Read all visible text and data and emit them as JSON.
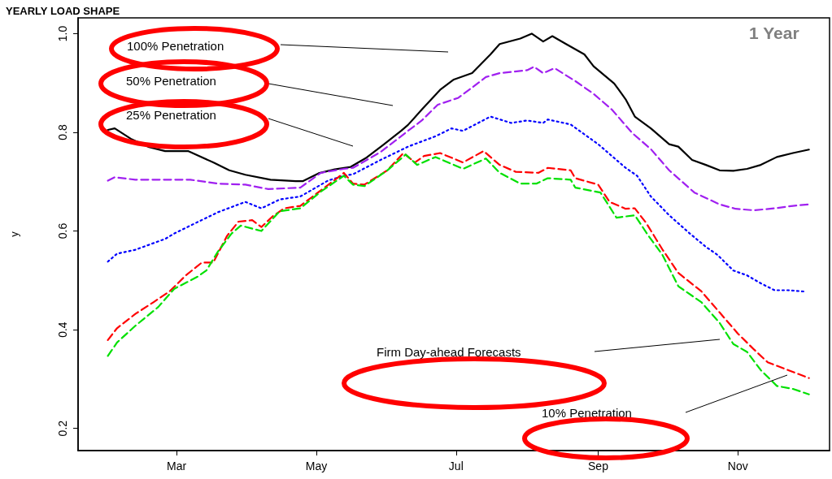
{
  "chart_data": {
    "type": "line",
    "title": "YEARLY LOAD SHAPE",
    "ylabel": "y",
    "xlim": [
      "--01-17",
      "--12-11"
    ],
    "xticks": [
      {
        "value": "--03-01",
        "label": "Mar"
      },
      {
        "value": "--05-01",
        "label": "May"
      },
      {
        "value": "--07-01",
        "label": "Jul"
      },
      {
        "value": "--09-01",
        "label": "Sep"
      },
      {
        "value": "--11-01",
        "label": "Nov"
      }
    ],
    "ylim": [
      0.155,
      1.032
    ],
    "yticks": [
      {
        "value": 0.2,
        "label": "0.2"
      },
      {
        "value": 0.4,
        "label": "0.4"
      },
      {
        "value": 0.6,
        "label": "0.6"
      },
      {
        "value": 0.8,
        "label": "0.8"
      },
      {
        "value": 1,
        "label": "1.0"
      }
    ],
    "series": [
      {
        "color": "#000000",
        "line_style": "solid",
        "x": [
          "--01-30",
          "--02-02",
          "--02-09",
          "--02-17",
          "--02-24",
          "--03-06",
          "--03-17",
          "--03-24",
          "--03-31",
          "--04-11",
          "--04-22",
          "--04-25",
          "--05-02",
          "--05-09",
          "--05-16",
          "--05-23",
          "--05-30",
          "--06-07",
          "--06-10",
          "--06-16",
          "--06-24",
          "--06-30",
          "--07-08",
          "--07-16",
          "--07-20",
          "--07-29",
          "--08-03",
          "--08-08",
          "--08-12",
          "--08-18",
          "--08-26",
          "--08-30",
          "--09-08",
          "--09-13",
          "--09-17",
          "--09-24",
          "--10-02",
          "--10-06",
          "--10-12",
          "--10-18",
          "--10-24",
          "--10-30",
          "--11-05",
          "--11-11",
          "--11-18",
          "--11-25",
          "--12-02"
        ],
        "values": [
          0.805,
          0.808,
          0.787,
          0.77,
          0.762,
          0.762,
          0.739,
          0.723,
          0.714,
          0.704,
          0.701,
          0.701,
          0.717,
          0.725,
          0.73,
          0.749,
          0.774,
          0.803,
          0.815,
          0.846,
          0.886,
          0.907,
          0.92,
          0.958,
          0.979,
          0.99,
          1.0,
          0.984,
          0.995,
          0.979,
          0.958,
          0.934,
          0.899,
          0.867,
          0.832,
          0.808,
          0.776,
          0.771,
          0.744,
          0.734,
          0.723,
          0.722,
          0.726,
          0.734,
          0.75,
          0.758,
          0.765
        ]
      },
      {
        "color": "#a020f0",
        "line_style": "dashed",
        "x": [
          "--01-30",
          "--02-02",
          "--02-11",
          "--03-07",
          "--03-19",
          "--03-31",
          "--04-10",
          "--04-24",
          "--05-03",
          "--05-13",
          "--05-17",
          "--05-29",
          "--06-10",
          "--06-16",
          "--06-23",
          "--07-02",
          "--07-14",
          "--07-20",
          "--08-01",
          "--08-04",
          "--08-08",
          "--08-13",
          "--08-22",
          "--08-30",
          "--09-07",
          "--09-16",
          "--09-24",
          "--10-02",
          "--10-13",
          "--10-24",
          "--10-31",
          "--11-08",
          "--11-17",
          "--11-25",
          "--12-02"
        ],
        "values": [
          0.702,
          0.709,
          0.704,
          0.704,
          0.696,
          0.694,
          0.685,
          0.688,
          0.718,
          0.726,
          0.728,
          0.76,
          0.803,
          0.824,
          0.856,
          0.87,
          0.912,
          0.92,
          0.926,
          0.933,
          0.92,
          0.93,
          0.904,
          0.878,
          0.846,
          0.798,
          0.766,
          0.723,
          0.678,
          0.654,
          0.645,
          0.642,
          0.646,
          0.651,
          0.654
        ]
      },
      {
        "color": "#0000ff",
        "line_style": "dotted",
        "x": [
          "--01-30",
          "--02-03",
          "--02-11",
          "--02-24",
          "--02-28",
          "--03-07",
          "--03-19",
          "--03-31",
          "--04-07",
          "--04-15",
          "--04-24",
          "--05-06",
          "--05-13",
          "--05-17",
          "--05-29",
          "--06-10",
          "--06-22",
          "--06-29",
          "--07-04",
          "--07-16",
          "--07-25",
          "--08-01",
          "--08-08",
          "--08-10",
          "--08-20",
          "--09-01",
          "--09-13",
          "--09-18",
          "--09-24",
          "--10-02",
          "--10-11",
          "--10-18",
          "--10-23",
          "--10-30",
          "--11-05",
          "--11-11",
          "--11-17",
          "--11-23",
          "--12-01"
        ],
        "values": [
          0.538,
          0.554,
          0.562,
          0.584,
          0.595,
          0.611,
          0.638,
          0.659,
          0.646,
          0.664,
          0.67,
          0.702,
          0.712,
          0.715,
          0.744,
          0.771,
          0.792,
          0.808,
          0.803,
          0.832,
          0.819,
          0.824,
          0.819,
          0.826,
          0.816,
          0.776,
          0.728,
          0.712,
          0.67,
          0.632,
          0.595,
          0.568,
          0.552,
          0.52,
          0.51,
          0.494,
          0.48,
          0.48,
          0.477
        ]
      },
      {
        "color": "#ff0000",
        "line_style": "dashed",
        "x": [
          "--01-30",
          "--02-03",
          "--02-11",
          "--02-19",
          "--02-26",
          "--03-05",
          "--03-12",
          "--03-17",
          "--03-23",
          "--03-28",
          "--04-03",
          "--04-07",
          "--04-12",
          "--04-17",
          "--04-24",
          "--04-30",
          "--05-10",
          "--05-13",
          "--05-17",
          "--05-22",
          "--06-01",
          "--06-08",
          "--06-13",
          "--06-17",
          "--06-24",
          "--07-04",
          "--07-13",
          "--07-20",
          "--07-27",
          "--08-06",
          "--08-10",
          "--08-20",
          "--08-22",
          "--09-01",
          "--09-06",
          "--09-13",
          "--09-17",
          "--09-22",
          "--09-29",
          "--10-06",
          "--10-16",
          "--10-24",
          "--11-01",
          "--11-08",
          "--11-14",
          "--11-23",
          "--12-02"
        ],
        "values": [
          0.379,
          0.403,
          0.432,
          0.456,
          0.478,
          0.51,
          0.536,
          0.536,
          0.59,
          0.619,
          0.622,
          0.608,
          0.63,
          0.646,
          0.651,
          0.672,
          0.707,
          0.718,
          0.696,
          0.694,
          0.723,
          0.758,
          0.739,
          0.752,
          0.758,
          0.739,
          0.762,
          0.734,
          0.72,
          0.718,
          0.728,
          0.723,
          0.707,
          0.694,
          0.659,
          0.645,
          0.646,
          0.616,
          0.563,
          0.515,
          0.478,
          0.435,
          0.392,
          0.36,
          0.334,
          0.318,
          0.302
        ]
      },
      {
        "color": "#00e000",
        "line_style": "dashed",
        "x": [
          "--01-30",
          "--02-03",
          "--02-11",
          "--02-21",
          "--02-28",
          "--03-10",
          "--03-14",
          "--03-19",
          "--03-25",
          "--03-29",
          "--04-07",
          "--04-15",
          "--04-24",
          "--05-03",
          "--05-13",
          "--05-17",
          "--05-22",
          "--06-01",
          "--06-09",
          "--06-14",
          "--06-22",
          "--07-04",
          "--07-14",
          "--07-20",
          "--07-29",
          "--08-05",
          "--08-10",
          "--08-20",
          "--08-22",
          "--09-02",
          "--09-09",
          "--09-17",
          "--09-23",
          "--09-29",
          "--10-06",
          "--10-16",
          "--10-24",
          "--10-30",
          "--11-05",
          "--11-11",
          "--11-18",
          "--11-25",
          "--12-02"
        ],
        "values": [
          0.347,
          0.374,
          0.408,
          0.446,
          0.483,
          0.507,
          0.52,
          0.558,
          0.595,
          0.611,
          0.6,
          0.64,
          0.646,
          0.68,
          0.712,
          0.694,
          0.691,
          0.723,
          0.755,
          0.734,
          0.75,
          0.726,
          0.747,
          0.718,
          0.696,
          0.696,
          0.707,
          0.704,
          0.688,
          0.678,
          0.627,
          0.632,
          0.59,
          0.552,
          0.488,
          0.456,
          0.414,
          0.371,
          0.355,
          0.318,
          0.286,
          0.28,
          0.269
        ]
      }
    ],
    "annotations": [
      "100% Penetration",
      "50% Penetration",
      "25% Penetration",
      "Firm Day-ahead Forecasts",
      "10% Penetration",
      "1 Year"
    ]
  }
}
